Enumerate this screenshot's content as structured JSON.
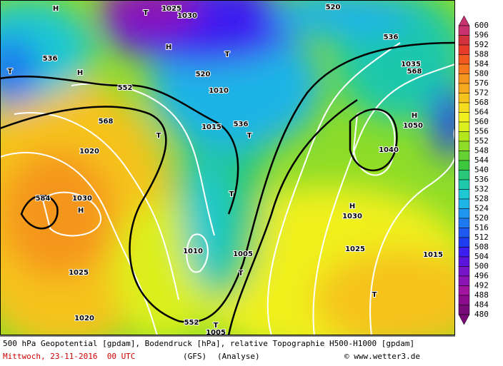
{
  "colorbar": {
    "labels": [
      600,
      596,
      592,
      588,
      584,
      580,
      576,
      572,
      568,
      564,
      560,
      556,
      552,
      548,
      544,
      540,
      536,
      532,
      528,
      524,
      520,
      516,
      512,
      508,
      504,
      500,
      496,
      492,
      488,
      484,
      480
    ],
    "colors": [
      "#c8326e",
      "#d2323c",
      "#e63c28",
      "#f05a1e",
      "#f5781e",
      "#f5961e",
      "#f5aa1e",
      "#f5c31e",
      "#f5dc1e",
      "#f0f01e",
      "#dcf01e",
      "#b4e61e",
      "#8cdc28",
      "#64d232",
      "#3cc83c",
      "#28c878",
      "#1ec8aa",
      "#1ec8d2",
      "#1eb4e6",
      "#1e96f0",
      "#1e78f0",
      "#1e5af0",
      "#1e3cf0",
      "#3c1ef0",
      "#5a14dc",
      "#7814c8",
      "#8c14b4",
      "#a014a0",
      "#8c0a8c",
      "#780a78"
    ]
  },
  "map_labels": [
    "H",
    "T",
    "1025",
    "1030",
    "H",
    "T",
    "520",
    "536",
    "552",
    "568",
    "584",
    "H",
    "1030",
    "1025",
    "1020",
    "T",
    "T",
    "T",
    "1010",
    "1015",
    "536",
    "T",
    "1005",
    "T",
    "552",
    "T",
    "H",
    "1035",
    "568",
    "H",
    "1050",
    "1040",
    "H",
    "1030",
    "1025",
    "1015",
    "T",
    "1005",
    "1010",
    "1020",
    "520",
    "536"
  ],
  "footer": {
    "description": "500 hPa Geopotential [gpdam], Bodendruck [hPa], relative Topographie H500-H1000 [gpdam]",
    "date": "Mittwoch, 23-11-2016  00 UTC",
    "model": "(GFS)",
    "run": "(Analyse)",
    "copyright": "© www.wetter3.de"
  }
}
